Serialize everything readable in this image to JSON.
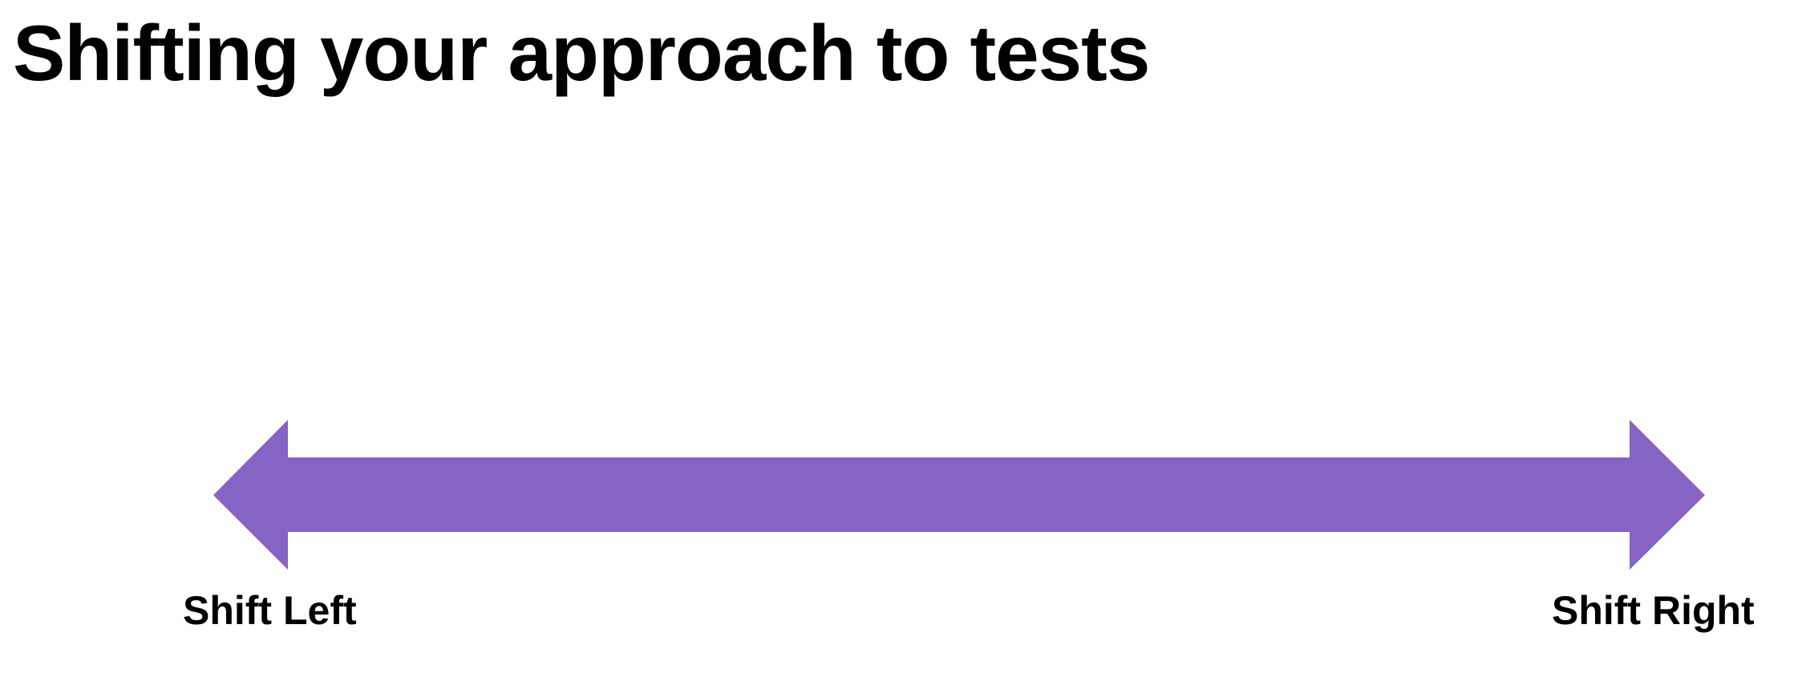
{
  "slide": {
    "title": "Shifting your approach to tests"
  },
  "diagram": {
    "type": "double-headed-arrow",
    "arrow_color": "#8663C5",
    "left_label": "Shift Left",
    "right_label": "Shift Right"
  }
}
